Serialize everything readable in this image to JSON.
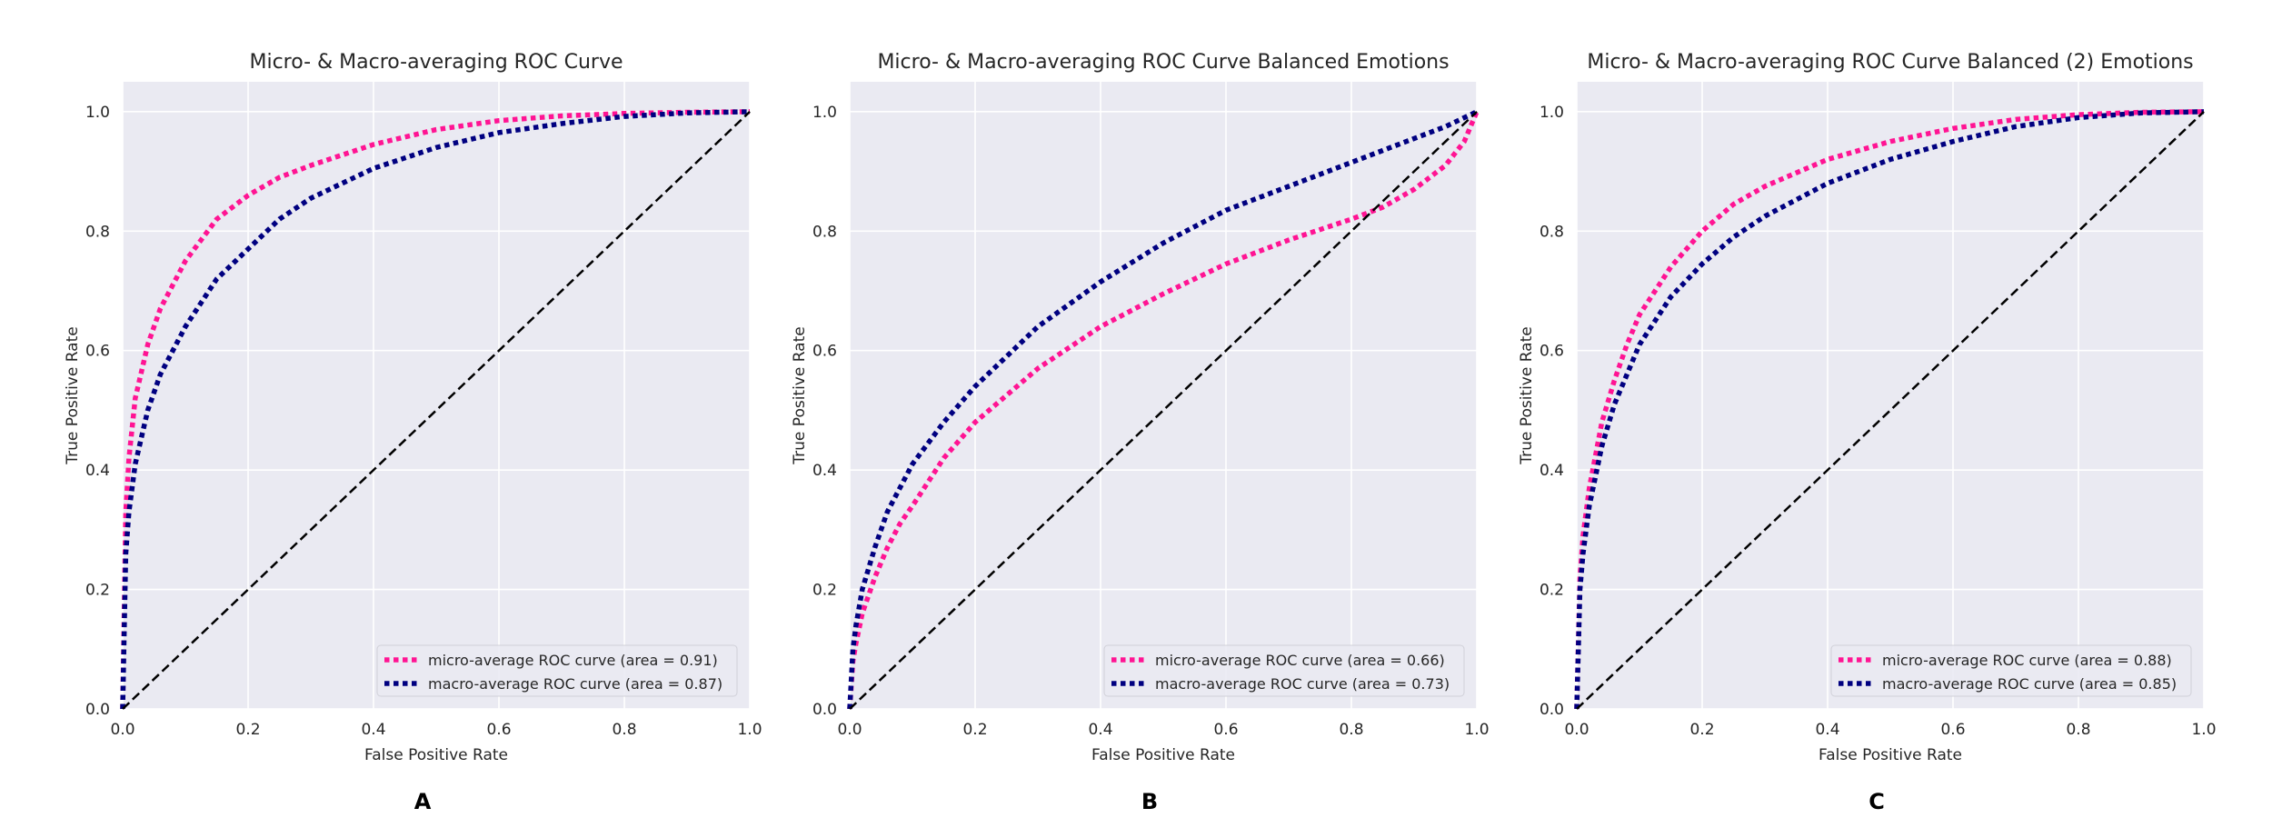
{
  "chart_data": [
    {
      "type": "line",
      "title": "Micro- & Macro-averaging ROC Curve",
      "panel_label": "A",
      "xlabel": "False Positive Rate",
      "ylabel": "True Positive Rate",
      "xlim": [
        0,
        1
      ],
      "ylim": [
        0,
        1.05
      ],
      "xticks": [
        "0.0",
        "0.2",
        "0.4",
        "0.6",
        "0.8",
        "1.0"
      ],
      "yticks": [
        "0.0",
        "0.2",
        "0.4",
        "0.6",
        "0.8",
        "1.0"
      ],
      "grid": true,
      "legend_position": "lower right",
      "series": [
        {
          "name": "micro-average ROC curve (area = 0.91)",
          "color": "#ff1493",
          "style": "dotted",
          "x": [
            0,
            0.005,
            0.01,
            0.02,
            0.04,
            0.06,
            0.08,
            0.1,
            0.15,
            0.2,
            0.25,
            0.3,
            0.4,
            0.5,
            0.6,
            0.7,
            0.8,
            0.9,
            1.0
          ],
          "y": [
            0,
            0.33,
            0.42,
            0.52,
            0.61,
            0.67,
            0.71,
            0.75,
            0.82,
            0.86,
            0.89,
            0.91,
            0.945,
            0.97,
            0.985,
            0.993,
            0.997,
            0.999,
            1.0
          ]
        },
        {
          "name": "macro-average ROC curve (area = 0.87)",
          "color": "#000080",
          "style": "dotted",
          "x": [
            0,
            0.005,
            0.01,
            0.02,
            0.04,
            0.06,
            0.08,
            0.1,
            0.15,
            0.2,
            0.25,
            0.3,
            0.4,
            0.5,
            0.6,
            0.7,
            0.8,
            0.9,
            1.0
          ],
          "y": [
            0,
            0.26,
            0.33,
            0.41,
            0.5,
            0.56,
            0.6,
            0.64,
            0.72,
            0.77,
            0.82,
            0.855,
            0.905,
            0.94,
            0.965,
            0.98,
            0.992,
            0.998,
            1.0
          ]
        },
        {
          "name": "",
          "color": "#000000",
          "style": "dashed",
          "x": [
            0,
            1
          ],
          "y": [
            0,
            1
          ]
        }
      ]
    },
    {
      "type": "line",
      "title": "Micro- & Macro-averaging ROC Curve Balanced Emotions",
      "panel_label": "B",
      "xlabel": "False Positive Rate",
      "ylabel": "True Positive Rate",
      "xlim": [
        0,
        1
      ],
      "ylim": [
        0,
        1.05
      ],
      "xticks": [
        "0.0",
        "0.2",
        "0.4",
        "0.6",
        "0.8",
        "1.0"
      ],
      "yticks": [
        "0.0",
        "0.2",
        "0.4",
        "0.6",
        "0.8",
        "1.0"
      ],
      "grid": true,
      "legend_position": "lower right",
      "series": [
        {
          "name": "micro-average ROC curve (area = 0.66)",
          "color": "#ff1493",
          "style": "dotted",
          "x": [
            0,
            0.005,
            0.01,
            0.02,
            0.04,
            0.06,
            0.08,
            0.1,
            0.15,
            0.2,
            0.3,
            0.4,
            0.5,
            0.6,
            0.7,
            0.8,
            0.85,
            0.9,
            0.95,
            0.98,
            1.0
          ],
          "y": [
            0,
            0.08,
            0.11,
            0.16,
            0.22,
            0.27,
            0.31,
            0.34,
            0.42,
            0.48,
            0.57,
            0.64,
            0.695,
            0.745,
            0.785,
            0.82,
            0.84,
            0.87,
            0.91,
            0.95,
            1.0
          ]
        },
        {
          "name": "macro-average ROC curve (area = 0.73)",
          "color": "#000080",
          "style": "dotted",
          "x": [
            0,
            0.005,
            0.01,
            0.02,
            0.04,
            0.06,
            0.08,
            0.1,
            0.15,
            0.2,
            0.3,
            0.4,
            0.5,
            0.6,
            0.7,
            0.8,
            0.9,
            0.95,
            1.0
          ],
          "y": [
            0,
            0.1,
            0.14,
            0.2,
            0.27,
            0.33,
            0.37,
            0.41,
            0.48,
            0.54,
            0.64,
            0.715,
            0.78,
            0.835,
            0.875,
            0.915,
            0.955,
            0.975,
            1.0
          ]
        },
        {
          "name": "",
          "color": "#000000",
          "style": "dashed",
          "x": [
            0,
            1
          ],
          "y": [
            0,
            1
          ]
        }
      ]
    },
    {
      "type": "line",
      "title": "Micro- & Macro-averaging ROC Curve Balanced (2) Emotions",
      "panel_label": "C",
      "xlabel": "False Positive Rate",
      "ylabel": "True Positive Rate",
      "xlim": [
        0,
        1
      ],
      "ylim": [
        0,
        1.05
      ],
      "xticks": [
        "0.0",
        "0.2",
        "0.4",
        "0.6",
        "0.8",
        "1.0"
      ],
      "yticks": [
        "0.0",
        "0.2",
        "0.4",
        "0.6",
        "0.8",
        "1.0"
      ],
      "grid": true,
      "legend_position": "lower right",
      "series": [
        {
          "name": "micro-average ROC curve (area = 0.88)",
          "color": "#ff1493",
          "style": "dotted",
          "x": [
            0,
            0.005,
            0.01,
            0.02,
            0.04,
            0.06,
            0.08,
            0.1,
            0.15,
            0.2,
            0.25,
            0.3,
            0.4,
            0.5,
            0.6,
            0.7,
            0.8,
            0.9,
            1.0
          ],
          "y": [
            0,
            0.22,
            0.29,
            0.37,
            0.48,
            0.55,
            0.61,
            0.66,
            0.74,
            0.8,
            0.845,
            0.875,
            0.92,
            0.95,
            0.972,
            0.987,
            0.995,
            0.999,
            1.0
          ]
        },
        {
          "name": "macro-average ROC curve (area = 0.85)",
          "color": "#000080",
          "style": "dotted",
          "x": [
            0,
            0.005,
            0.01,
            0.02,
            0.04,
            0.06,
            0.08,
            0.1,
            0.15,
            0.2,
            0.25,
            0.3,
            0.4,
            0.5,
            0.6,
            0.7,
            0.8,
            0.9,
            1.0
          ],
          "y": [
            0,
            0.2,
            0.26,
            0.34,
            0.44,
            0.51,
            0.56,
            0.61,
            0.69,
            0.745,
            0.79,
            0.825,
            0.88,
            0.92,
            0.95,
            0.975,
            0.99,
            0.998,
            1.0
          ]
        },
        {
          "name": "",
          "color": "#000000",
          "style": "dashed",
          "x": [
            0,
            1
          ],
          "y": [
            0,
            1
          ]
        }
      ]
    }
  ]
}
